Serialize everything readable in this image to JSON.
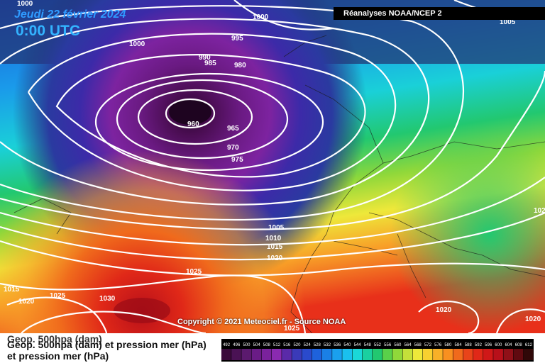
{
  "header": {
    "date": "Jeudi 22 février 2024",
    "time": "0:00 UTC",
    "source": "Réanalyses NOAA/NCEP 2"
  },
  "credit": "Copyright © 2021 Meteociel.fr - Source NOAA",
  "footer": {
    "line1": "Geop. 500hpa (dam)",
    "line2": "Geop. 500hpa (dam) et pression mer (hPa)",
    "line3": "et pression mer (hPa)"
  },
  "legend": {
    "labels": [
      "492",
      "496",
      "500",
      "504",
      "508",
      "512",
      "516",
      "520",
      "524",
      "528",
      "532",
      "536",
      "540",
      "544",
      "548",
      "552",
      "556",
      "560",
      "564",
      "568",
      "572",
      "576",
      "580",
      "584",
      "588",
      "592",
      "596",
      "600",
      "604",
      "608",
      "612"
    ],
    "colors": [
      "#3a0a3a",
      "#4a1254",
      "#5b1a6e",
      "#6a1c86",
      "#7a229c",
      "#8a2ab0",
      "#5a2aa8",
      "#3a3ab8",
      "#2a4acc",
      "#1e62dc",
      "#1a80e6",
      "#1aa0ee",
      "#1ac0ee",
      "#1ad8d8",
      "#1ad0a0",
      "#22c870",
      "#5ad04a",
      "#90d83a",
      "#c4e03a",
      "#eee83a",
      "#f8d030",
      "#f8b028",
      "#f89020",
      "#f06a1c",
      "#e8441a",
      "#e02818",
      "#d01818",
      "#b8101a",
      "#901018",
      "#600a10",
      "#300808"
    ]
  },
  "isobars": [
    {
      "label": "1000"
    },
    {
      "label": "1000"
    },
    {
      "label": "1000"
    },
    {
      "label": "995"
    },
    {
      "label": "990"
    },
    {
      "label": "985"
    },
    {
      "label": "980"
    },
    {
      "label": "960"
    },
    {
      "label": "965"
    },
    {
      "label": "970"
    },
    {
      "label": "975"
    },
    {
      "label": "1005"
    },
    {
      "label": "1010"
    },
    {
      "label": "1015"
    },
    {
      "label": "1020"
    },
    {
      "label": "1025"
    },
    {
      "label": "1015"
    },
    {
      "label": "1025"
    },
    {
      "label": "1020"
    },
    {
      "label": "1030"
    },
    {
      "label": "1020"
    },
    {
      "label": "1020"
    },
    {
      "label": "1025"
    },
    {
      "label": "1005"
    },
    {
      "label": "102"
    }
  ]
}
